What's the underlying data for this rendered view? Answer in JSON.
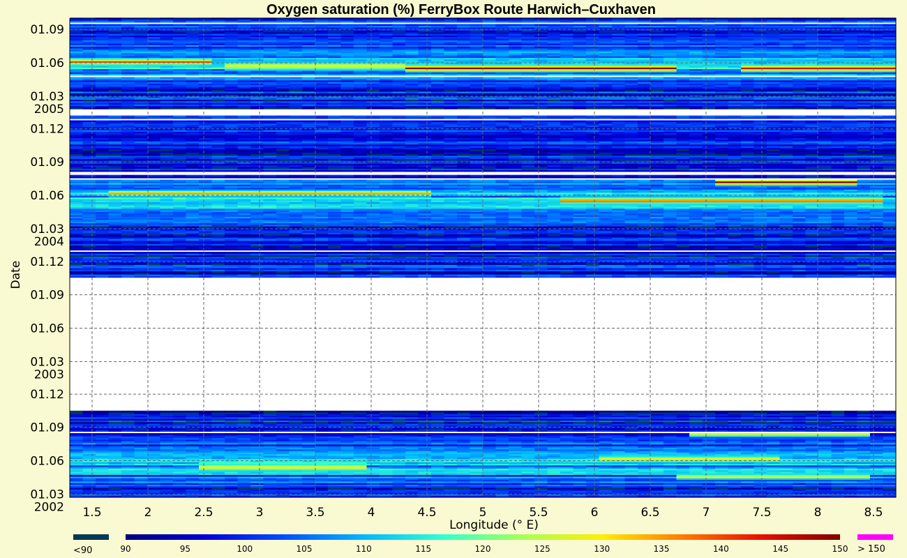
{
  "chart_data": {
    "type": "heatmap",
    "title": "Oxygen saturation (%) FerryBox Route Harwich–Cuxhaven",
    "xlabel": "Longitude (° E)",
    "ylabel": "Date",
    "x_ticks": [
      "1.5",
      "2",
      "2.5",
      "3",
      "3.5",
      "4",
      "4.5",
      "5",
      "5.5",
      "6",
      "6.5",
      "7",
      "7.5",
      "8",
      "8.5"
    ],
    "x_tick_values": [
      1.5,
      2,
      2.5,
      3,
      3.5,
      4,
      4.5,
      5,
      5.5,
      6,
      6.5,
      7,
      7.5,
      8,
      8.5
    ],
    "xlim": [
      1.3,
      8.7
    ],
    "ylim": [
      "2002-02-20",
      "2005-09-30"
    ],
    "y_ticks": [
      {
        "date": "2002-03-01",
        "label": "01.03",
        "year": "2002"
      },
      {
        "date": "2002-06-01",
        "label": "01.06"
      },
      {
        "date": "2002-09-01",
        "label": "01.09"
      },
      {
        "date": "2002-12-01",
        "label": "01.12"
      },
      {
        "date": "2003-03-01",
        "label": "01.03",
        "year": "2003"
      },
      {
        "date": "2003-06-01",
        "label": "01.06"
      },
      {
        "date": "2003-09-01",
        "label": "01.09"
      },
      {
        "date": "2003-12-01",
        "label": "01.12"
      },
      {
        "date": "2004-03-01",
        "label": "01.03",
        "year": "2004"
      },
      {
        "date": "2004-06-01",
        "label": "01.06"
      },
      {
        "date": "2004-09-01",
        "label": "01.09"
      },
      {
        "date": "2004-12-01",
        "label": "01.12"
      },
      {
        "date": "2005-03-01",
        "label": "01.03",
        "year": "2005"
      },
      {
        "date": "2005-06-01",
        "label": "01.06"
      },
      {
        "date": "2005-09-01",
        "label": "01.09"
      }
    ],
    "grid": true,
    "data_gaps": [
      {
        "start": "2002-10-15",
        "end": "2003-10-15"
      },
      {
        "start": "2004-07-25",
        "end": "2004-08-01"
      },
      {
        "start": "2005-01-05",
        "end": "2005-01-22"
      }
    ],
    "features": [
      {
        "date": "2005-05-15",
        "lon_start": 4.6,
        "lon_end": 6.4,
        "value": 150
      },
      {
        "date": "2005-05-15",
        "lon_start": 7.6,
        "lon_end": 8.5,
        "value": 145
      },
      {
        "date": "2005-05-22",
        "lon_start": 3.0,
        "lon_end": 4.0,
        "value": 130
      },
      {
        "date": "2005-06-02",
        "lon_start": 1.5,
        "lon_end": 2.3,
        "value": 140
      },
      {
        "date": "2004-06-05",
        "lon_start": 2.0,
        "lon_end": 4.2,
        "value": 135
      },
      {
        "date": "2004-05-15",
        "lon_start": 6.0,
        "lon_end": 8.3,
        "value": 140
      },
      {
        "date": "2004-07-05",
        "lon_start": 7.4,
        "lon_end": 8.0,
        "value": 150
      },
      {
        "date": "2002-05-12",
        "lon_start": 2.7,
        "lon_end": 3.7,
        "value": 130
      },
      {
        "date": "2002-06-05",
        "lon_start": 6.3,
        "lon_end": 7.4,
        "value": 128
      },
      {
        "date": "2002-04-15",
        "lon_start": 7.0,
        "lon_end": 8.2,
        "value": 130
      },
      {
        "date": "2002-08-10",
        "lon_start": 7.2,
        "lon_end": 8.2,
        "value": 127
      }
    ],
    "colorbar": {
      "under_label": "<90",
      "over_label": "> 150",
      "ticks": [
        "90",
        "95",
        "100",
        "105",
        "110",
        "115",
        "120",
        "125",
        "130",
        "135",
        "140",
        "145",
        "150"
      ],
      "under_color": "#003a54",
      "over_color": "#ff00ff",
      "colormap": [
        "#000080",
        "#0000d8",
        "#0050ff",
        "#00b8ff",
        "#30ffd0",
        "#a8ff58",
        "#ffee00",
        "#ff7c00",
        "#e81000",
        "#800000"
      ]
    }
  }
}
